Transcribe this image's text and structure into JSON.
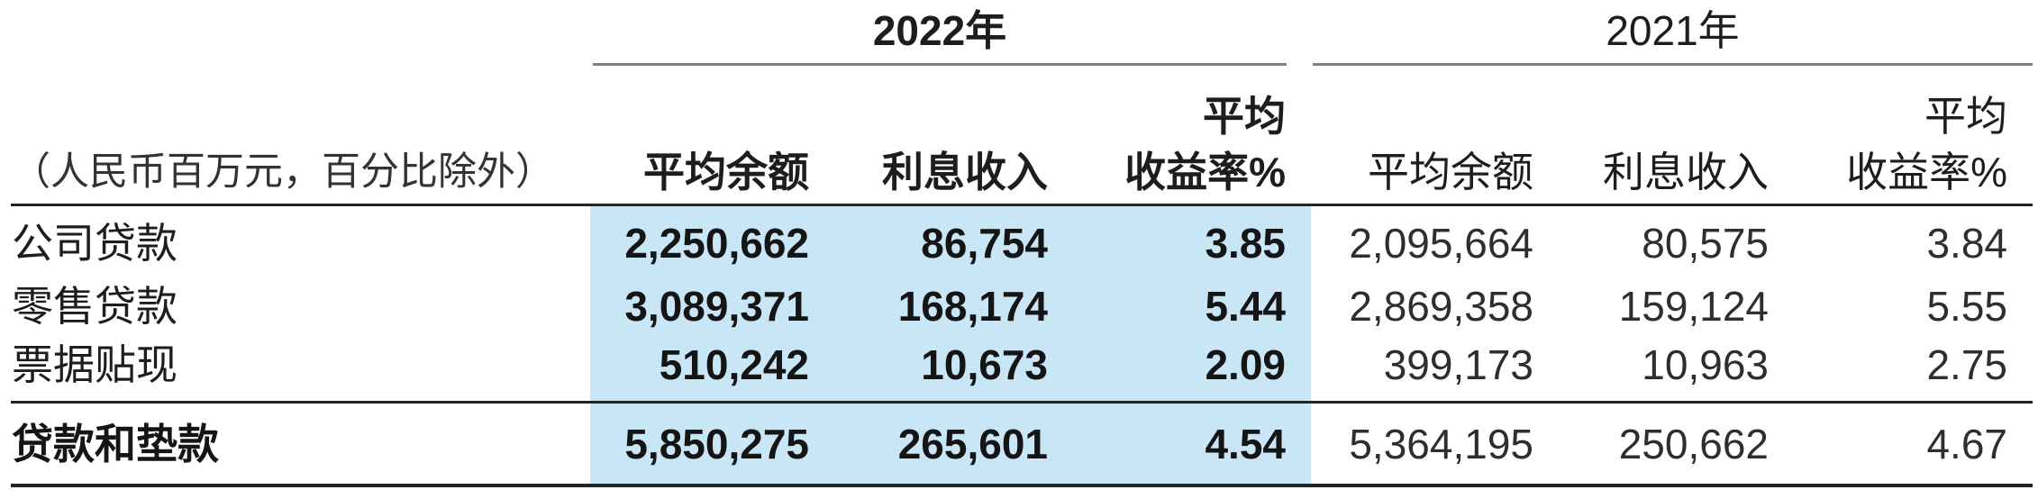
{
  "table": {
    "unit_note": "（人民币百万元，百分比除外）",
    "groups": {
      "y2022": {
        "year": "2022年",
        "headers": {
          "avg_balance": "平均余额",
          "interest_income": "利息收入",
          "avg_yield": "平均\n收益率%"
        }
      },
      "y2021": {
        "year": "2021年",
        "headers": {
          "avg_balance": "平均余额",
          "interest_income": "利息收入",
          "avg_yield": "平均\n收益率%"
        }
      }
    },
    "rows": [
      {
        "label": "公司贷款",
        "v2022": [
          "2,250,662",
          "86,754",
          "3.85"
        ],
        "v2021": [
          "2,095,664",
          "80,575",
          "3.84"
        ]
      },
      {
        "label": "零售贷款",
        "v2022": [
          "3,089,371",
          "168,174",
          "5.44"
        ],
        "v2021": [
          "2,869,358",
          "159,124",
          "5.55"
        ]
      },
      {
        "label": "票据贴现",
        "v2022": [
          "510,242",
          "10,673",
          "2.09"
        ],
        "v2021": [
          "399,173",
          "10,963",
          "2.75"
        ]
      },
      {
        "label": "贷款和垫款",
        "v2022": [
          "5,850,275",
          "265,601",
          "4.54"
        ],
        "v2021": [
          "5,364,195",
          "250,662",
          "4.67"
        ]
      }
    ]
  },
  "colors": {
    "highlight_2022_band": "#c9e6f7",
    "rule_dark": "#242424",
    "rule_gray": "#7f7f7f",
    "text": "#1d1d1d"
  }
}
